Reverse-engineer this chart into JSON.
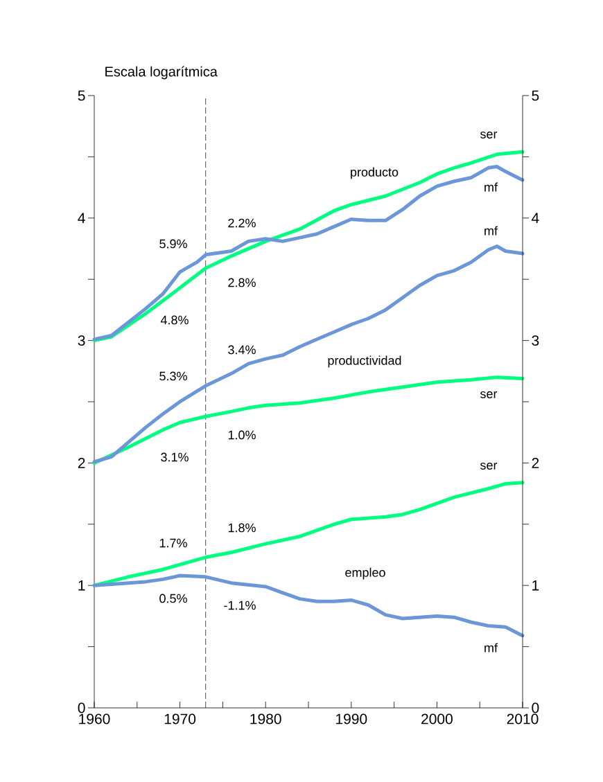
{
  "chart_data": {
    "type": "line",
    "xlim": [
      1960,
      2010
    ],
    "xticks": [
      1960,
      {
        "value": 1965,
        "label": null
      },
      1970,
      {
        "value": 1975,
        "label": null
      },
      1980,
      {
        "value": 1985,
        "label": null
      },
      1990,
      {
        "value": 1995,
        "label": null
      },
      2000,
      {
        "value": 2005,
        "label": null
      },
      2010
    ],
    "ylim": [
      0,
      5
    ],
    "yticks": [
      0,
      {
        "value": 0.5,
        "label": null
      },
      1,
      {
        "value": 1.5,
        "label": null
      },
      2,
      {
        "value": 2.5,
        "label": null
      },
      3,
      {
        "value": 3.5,
        "label": null
      },
      4,
      {
        "value": 4.5,
        "label": null
      },
      5
    ],
    "y2lim": [
      0,
      5
    ],
    "y2ticks": [
      0,
      {
        "value": 0.5,
        "label": null
      },
      1,
      {
        "value": 1.5,
        "label": null
      },
      2,
      {
        "value": 2.5,
        "label": null
      },
      3,
      {
        "value": 3.5,
        "label": null
      },
      4,
      {
        "value": 4.5,
        "label": null
      },
      5
    ],
    "marker": "none",
    "line_style": "solid",
    "series": [
      {
        "name": "ser",
        "color": "#00ff80",
        "x": [
          1960,
          1962,
          1966,
          1970,
          1973,
          1976,
          1980,
          1984,
          1988,
          1990,
          1994,
          1998,
          2000,
          2002,
          2004,
          2007,
          2010
        ],
        "values": [
          3.0,
          3.03,
          3.22,
          3.43,
          3.59,
          3.69,
          3.81,
          3.91,
          4.06,
          4.11,
          4.18,
          4.29,
          4.36,
          4.41,
          4.45,
          4.52,
          4.54
        ]
      },
      {
        "name": "mf",
        "color": "#6b96d8",
        "x": [
          1960,
          1962,
          1966,
          1968,
          1970,
          1972,
          1973,
          1976,
          1978,
          1980,
          1982,
          1984,
          1986,
          1988,
          1990,
          1992,
          1994,
          1996,
          1998,
          2000,
          2002,
          2004,
          2006,
          2007,
          2008,
          2010
        ],
        "values": [
          3.01,
          3.04,
          3.26,
          3.38,
          3.56,
          3.64,
          3.7,
          3.73,
          3.81,
          3.83,
          3.81,
          3.84,
          3.87,
          3.93,
          3.99,
          3.98,
          3.98,
          4.07,
          4.18,
          4.26,
          4.3,
          4.33,
          4.41,
          4.42,
          4.38,
          4.31
        ]
      },
      {
        "name": "ser",
        "color": "#00ff80",
        "x": [
          1960,
          1964,
          1968,
          1970,
          1973,
          1976,
          1978,
          1980,
          1984,
          1988,
          1992,
          1996,
          2000,
          2004,
          2007,
          2010
        ],
        "values": [
          2.0,
          2.13,
          2.27,
          2.33,
          2.38,
          2.42,
          2.45,
          2.47,
          2.49,
          2.53,
          2.58,
          2.62,
          2.66,
          2.68,
          2.7,
          2.69
        ]
      },
      {
        "name": "mf",
        "color": "#6b96d8",
        "x": [
          1960,
          1962,
          1966,
          1968,
          1970,
          1973,
          1976,
          1978,
          1980,
          1982,
          1984,
          1986,
          1988,
          1990,
          1992,
          1994,
          1996,
          1998,
          2000,
          2002,
          2004,
          2006,
          2007,
          2008,
          2010
        ],
        "values": [
          2.01,
          2.05,
          2.29,
          2.4,
          2.5,
          2.63,
          2.73,
          2.81,
          2.85,
          2.88,
          2.95,
          3.01,
          3.07,
          3.13,
          3.18,
          3.25,
          3.35,
          3.45,
          3.53,
          3.57,
          3.64,
          3.74,
          3.77,
          3.73,
          3.71
        ]
      },
      {
        "name": "ser",
        "color": "#00ff80",
        "x": [
          1960,
          1964,
          1968,
          1970,
          1973,
          1976,
          1980,
          1984,
          1988,
          1990,
          1994,
          1996,
          1998,
          2002,
          2006,
          2008,
          2010
        ],
        "values": [
          1.0,
          1.07,
          1.13,
          1.17,
          1.23,
          1.27,
          1.34,
          1.4,
          1.5,
          1.54,
          1.56,
          1.58,
          1.62,
          1.72,
          1.79,
          1.83,
          1.84
        ]
      },
      {
        "name": "mf",
        "color": "#6b96d8",
        "x": [
          1960,
          1966,
          1968,
          1970,
          1973,
          1976,
          1980,
          1982,
          1984,
          1986,
          1988,
          1990,
          1992,
          1994,
          1996,
          2000,
          2002,
          2004,
          2006,
          2008,
          2010
        ],
        "values": [
          1.0,
          1.03,
          1.05,
          1.08,
          1.07,
          1.02,
          0.99,
          0.94,
          0.89,
          0.87,
          0.87,
          0.88,
          0.84,
          0.76,
          0.73,
          0.75,
          0.74,
          0.7,
          0.67,
          0.66,
          0.59
        ]
      }
    ],
    "ref_lines": [
      {
        "axis": "x",
        "value": 1973,
        "line_style": "dashed",
        "color": "#000000"
      }
    ],
    "annotations": [
      "Escala logarítmica",
      "producto",
      "2.2%",
      "5.9%",
      "2.8%",
      "4.8%",
      "3.4%",
      "productividad",
      "5.3%",
      "1.0%",
      "3.1%",
      "1.8%",
      "1.7%",
      "empleo",
      "0.5%",
      "-1.1%"
    ]
  }
}
